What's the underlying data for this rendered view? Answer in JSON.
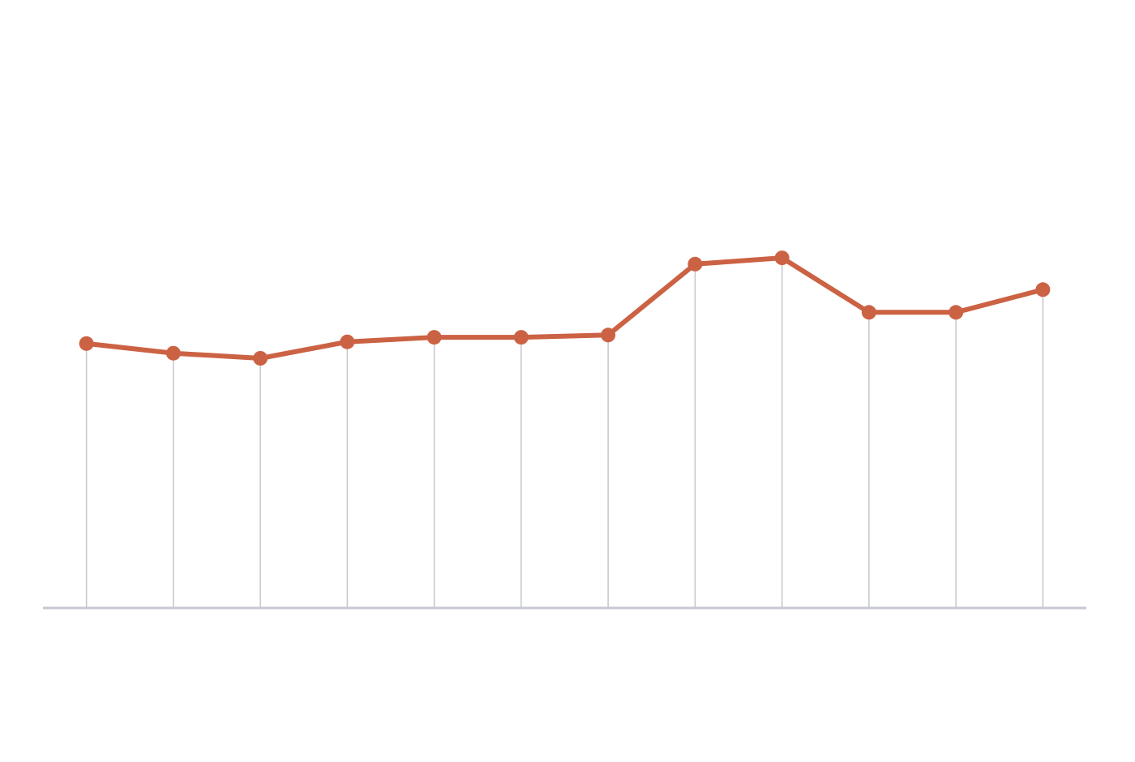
{
  "chart_data": {
    "type": "line",
    "categories": [
      null,
      null,
      null,
      null,
      null,
      null,
      null,
      null,
      null,
      null,
      null,
      null
    ],
    "values": [
      46.6,
      44.9,
      44.0,
      46.9,
      47.7,
      47.7,
      48.1,
      60.6,
      61.7,
      52.1,
      52.1,
      56.1
    ],
    "color": "#cc6244",
    "ylim": [
      0,
      100
    ],
    "drop_lines": true
  }
}
